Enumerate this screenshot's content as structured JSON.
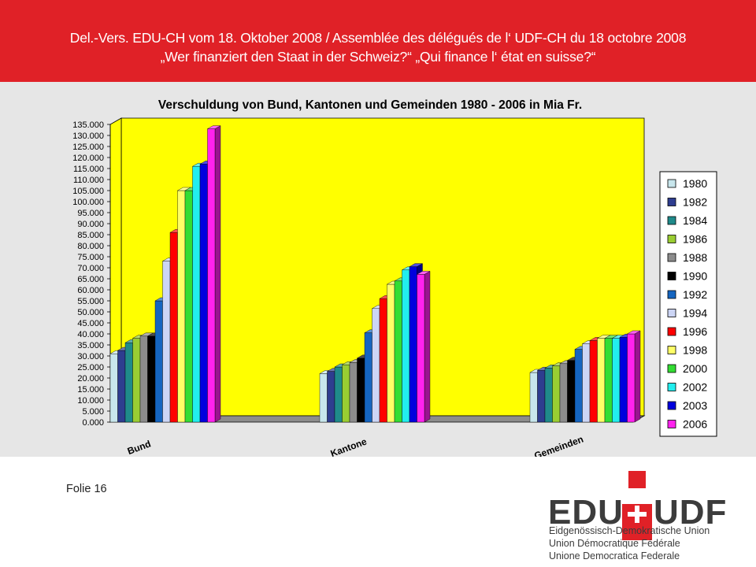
{
  "header": {
    "line1": "Del.-Vers. EDU-CH   vom 18. Oktober 2008 / Assemblée des délégués de l‘ UDF-CH  du 18 octobre 2008",
    "line2": "„Wer finanziert den Staat in der  Schweiz?“  „Qui finance l‘ état en suisse?“"
  },
  "footer": {
    "slide_label": "Folie 16"
  },
  "logo": {
    "name_left": "EDU",
    "name_right": "UDF",
    "lines": [
      "Eidgenössisch-Demokratische Union",
      "Union Démocratique Fédérale",
      "Unione Democratica Federale"
    ]
  },
  "colors": {
    "header_red": "#e02127",
    "chart_wall": "#ffff00",
    "panel_gray": "#e6e6e6"
  },
  "chart_data": {
    "type": "bar",
    "title": "Verschuldung von Bund, Kantonen und Gemeinden 1980 - 2006 in Mia Fr.",
    "categories": [
      "Bund",
      "Kantone",
      "Gemeinden"
    ],
    "ylim": [
      0,
      135
    ],
    "ytick_labels": [
      "0.000",
      "5.000",
      "10.000",
      "15.000",
      "20.000",
      "25.000",
      "30.000",
      "35.000",
      "40.000",
      "45.000",
      "50.000",
      "55.000",
      "60.000",
      "65.000",
      "70.000",
      "75.000",
      "80.000",
      "85.000",
      "90.000",
      "95.000",
      "100.000",
      "105.000",
      "110.000",
      "115.000",
      "120.000",
      "125.000",
      "130.000",
      "135.000"
    ],
    "legend_position": "right",
    "grid": false,
    "series": [
      {
        "name": "1980",
        "color": "#c8e6ec",
        "values": [
          31,
          22,
          22.5
        ]
      },
      {
        "name": "1982",
        "color": "#2e3d8f",
        "values": [
          32.5,
          23,
          23.5
        ]
      },
      {
        "name": "1984",
        "color": "#1f8a8a",
        "values": [
          36,
          25,
          24.5
        ]
      },
      {
        "name": "1986",
        "color": "#9acd32",
        "values": [
          38,
          26,
          25.5
        ]
      },
      {
        "name": "1988",
        "color": "#8c8c8c",
        "values": [
          39,
          27,
          26.5
        ]
      },
      {
        "name": "1990",
        "color": "#000000",
        "values": [
          39,
          29,
          28
        ]
      },
      {
        "name": "1992",
        "color": "#1565c0",
        "values": [
          55,
          40.5,
          33
        ]
      },
      {
        "name": "1994",
        "color": "#ccd5f5",
        "values": [
          73,
          51.5,
          35.5
        ]
      },
      {
        "name": "1996",
        "color": "#ff0000",
        "values": [
          86,
          56,
          37
        ]
      },
      {
        "name": "1998",
        "color": "#ffff66",
        "values": [
          105,
          62.5,
          38
        ]
      },
      {
        "name": "2000",
        "color": "#33dd33",
        "values": [
          105,
          64,
          38
        ]
      },
      {
        "name": "2002",
        "color": "#22eeee",
        "values": [
          116,
          69,
          38
        ]
      },
      {
        "name": "2003",
        "color": "#0000dd",
        "values": [
          117,
          70.5,
          38.5
        ]
      },
      {
        "name": "2006",
        "color": "#ff22ee",
        "values": [
          133,
          67,
          40
        ]
      }
    ]
  }
}
